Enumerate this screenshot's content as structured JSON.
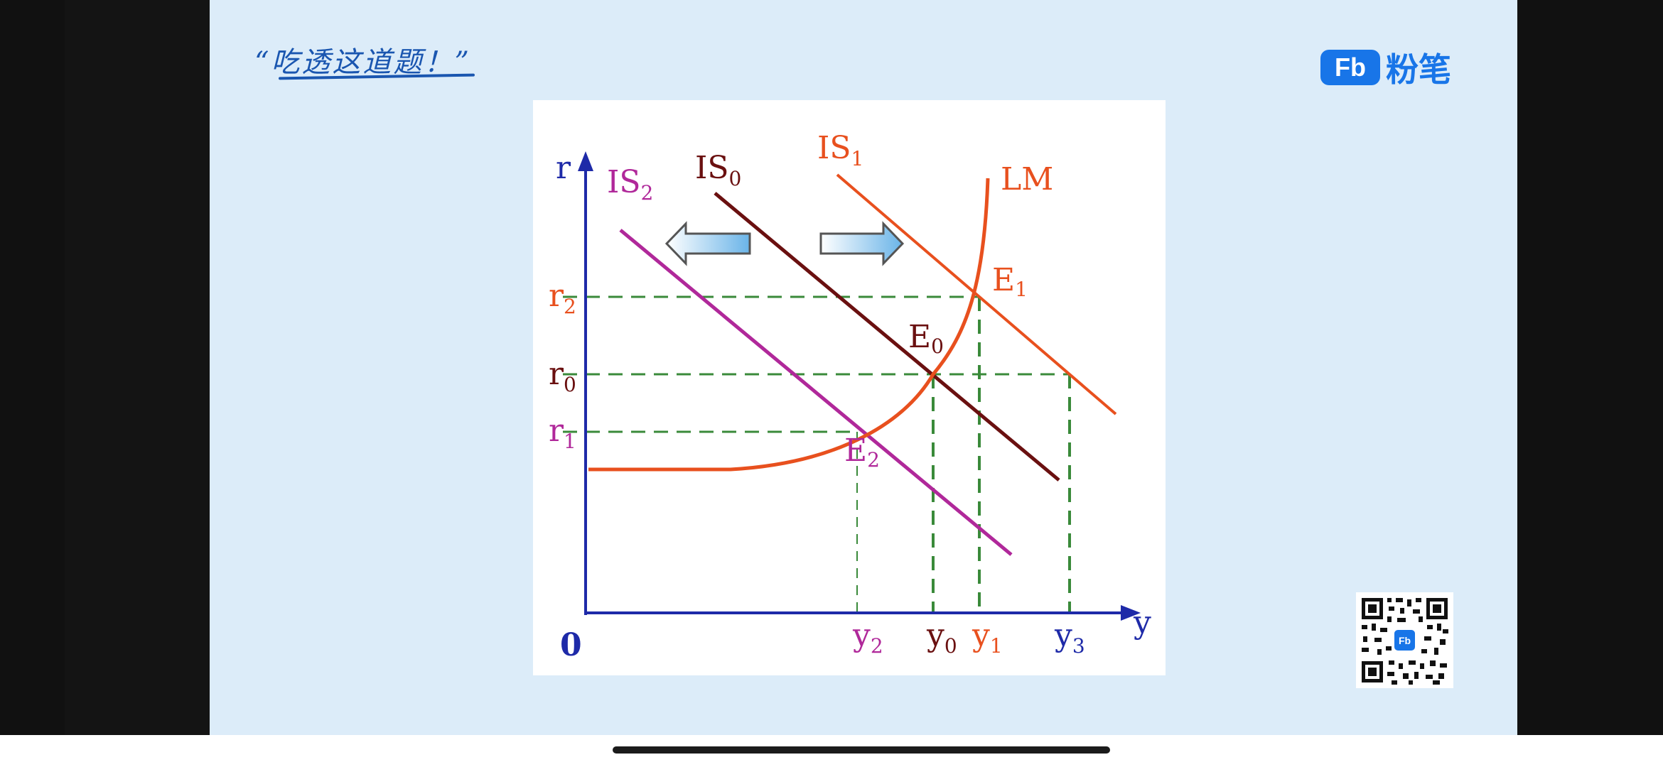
{
  "slide": {
    "slogan": "“吃透这道题！”",
    "brand_mark": "Fb",
    "brand_name": "粉笔"
  },
  "diagram": {
    "axis_y_label": "r",
    "axis_x_label": "y",
    "origin_label": "0",
    "curves": {
      "is2": {
        "base": "IS",
        "sub": "2"
      },
      "is0": {
        "base": "IS",
        "sub": "0"
      },
      "is1": {
        "base": "IS",
        "sub": "1"
      },
      "lm": "LM"
    },
    "points": {
      "e0": {
        "base": "E",
        "sub": "0"
      },
      "e1": {
        "base": "E",
        "sub": "1"
      },
      "e2": {
        "base": "E",
        "sub": "2"
      }
    },
    "y_ticks": {
      "r2": {
        "base": "r",
        "sub": "2"
      },
      "r0": {
        "base": "r",
        "sub": "0"
      },
      "r1": {
        "base": "r",
        "sub": "1"
      }
    },
    "x_ticks": {
      "y2": {
        "base": "y",
        "sub": "2"
      },
      "y0": {
        "base": "y",
        "sub": "0"
      },
      "y1": {
        "base": "y",
        "sub": "1"
      },
      "y3": {
        "base": "y",
        "sub": "3"
      }
    },
    "colors": {
      "axis": "#1e2aa8",
      "is2": "#b0289a",
      "is0": "#6a1010",
      "is1": "#e8501e",
      "lm": "#e8501e",
      "guide": "#3a8a3a",
      "arrow_fill": "#6ab4e8"
    }
  },
  "qr": {
    "center_mark": "Fb"
  }
}
